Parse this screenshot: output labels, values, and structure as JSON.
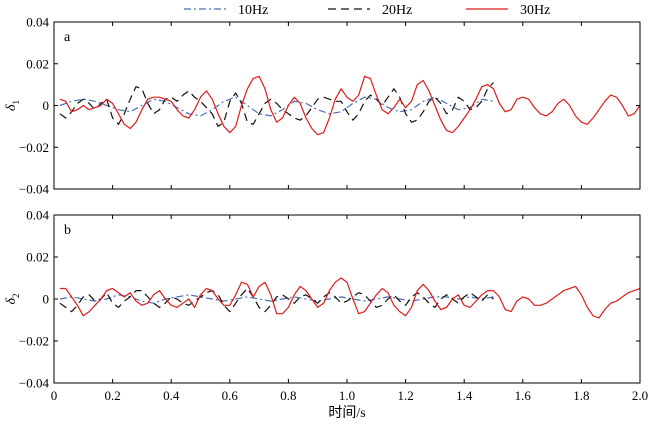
{
  "chart_data": [
    {
      "type": "line",
      "panel_label": "a",
      "ylabel": "δ",
      "ylabel_subscript": "1",
      "xlabel": "",
      "xlim": [
        0,
        2.0
      ],
      "ylim": [
        -0.04,
        0.04
      ],
      "x_ticks": [
        0,
        0.2,
        0.4,
        0.6,
        0.8,
        1.0,
        1.2,
        1.4,
        1.6,
        1.8,
        2.0
      ],
      "y_ticks": [
        -0.04,
        -0.02,
        0,
        0.02,
        0.04
      ],
      "y_tick_labels": [
        "−0.04",
        "−0.02",
        "0",
        "0.02",
        "0.04"
      ],
      "x_tick_labels_shown": false,
      "grid": false,
      "series": [
        {
          "name": "10Hz",
          "color": "#4a6fb5",
          "dash": "dashdot",
          "x": [
            0.02,
            0.06,
            0.1,
            0.14,
            0.18,
            0.22,
            0.26,
            0.3,
            0.34,
            0.38,
            0.42,
            0.46,
            0.5,
            0.54,
            0.58,
            0.62,
            0.66,
            0.7,
            0.74,
            0.78,
            0.82,
            0.86,
            0.9,
            0.94,
            0.98,
            1.02,
            1.06,
            1.1,
            1.14,
            1.18,
            1.22,
            1.26,
            1.3,
            1.34,
            1.38,
            1.42,
            1.46,
            1.5
          ],
          "y": [
            0.0,
            0.002,
            0.003,
            0.002,
            0.0,
            -0.002,
            -0.003,
            0.0,
            0.003,
            0.002,
            -0.001,
            -0.004,
            -0.005,
            -0.002,
            0.002,
            0.004,
            0.0,
            -0.004,
            -0.005,
            -0.002,
            0.002,
            0.001,
            -0.002,
            -0.004,
            -0.003,
            0.001,
            0.004,
            0.003,
            -0.001,
            -0.003,
            -0.002,
            0.002,
            0.004,
            0.001,
            -0.002,
            -0.001,
            0.003,
            0.002
          ]
        },
        {
          "name": "20Hz",
          "color": "#111111",
          "dash": "dash",
          "x": [
            0.02,
            0.04,
            0.06,
            0.08,
            0.1,
            0.12,
            0.14,
            0.16,
            0.18,
            0.2,
            0.22,
            0.24,
            0.26,
            0.28,
            0.3,
            0.32,
            0.34,
            0.36,
            0.38,
            0.4,
            0.42,
            0.44,
            0.46,
            0.48,
            0.5,
            0.52,
            0.54,
            0.56,
            0.58,
            0.6,
            0.62,
            0.64,
            0.66,
            0.68,
            0.7,
            0.72,
            0.74,
            0.76,
            0.78,
            0.8,
            0.82,
            0.84,
            0.86,
            0.88,
            0.9,
            0.92,
            0.94,
            0.96,
            0.98,
            1.0,
            1.02,
            1.04,
            1.06,
            1.08,
            1.1,
            1.12,
            1.14,
            1.16,
            1.18,
            1.2,
            1.22,
            1.24,
            1.26,
            1.28,
            1.3,
            1.32,
            1.34,
            1.36,
            1.38,
            1.4,
            1.42,
            1.44,
            1.46,
            1.48,
            1.5
          ],
          "y": [
            -0.004,
            -0.006,
            -0.003,
            0.001,
            0.003,
            0.001,
            -0.002,
            0.001,
            0.003,
            -0.006,
            -0.009,
            -0.004,
            0.003,
            0.009,
            0.008,
            0.001,
            -0.004,
            -0.002,
            0.003,
            0.004,
            0.002,
            0.005,
            0.007,
            0.004,
            0.002,
            -0.001,
            -0.004,
            -0.01,
            -0.008,
            0.002,
            0.006,
            0.001,
            -0.008,
            -0.009,
            -0.004,
            0.001,
            0.003,
            0.001,
            -0.002,
            -0.004,
            -0.006,
            -0.007,
            -0.005,
            -0.001,
            0.003,
            0.004,
            0.003,
            0.002,
            0.002,
            -0.003,
            -0.007,
            -0.004,
            0.002,
            0.005,
            0.003,
            0.0,
            0.004,
            0.008,
            0.004,
            -0.004,
            -0.008,
            -0.007,
            -0.003,
            0.002,
            0.004,
            0.001,
            -0.004,
            -0.002,
            0.004,
            0.002,
            -0.002,
            -0.001,
            0.002,
            0.008,
            0.011
          ]
        },
        {
          "name": "30Hz",
          "color": "#dd1c1c",
          "dash": "solid",
          "x": [
            0.02,
            0.04,
            0.06,
            0.08,
            0.1,
            0.12,
            0.14,
            0.16,
            0.18,
            0.2,
            0.22,
            0.24,
            0.26,
            0.28,
            0.3,
            0.32,
            0.34,
            0.36,
            0.38,
            0.4,
            0.42,
            0.44,
            0.46,
            0.48,
            0.5,
            0.52,
            0.54,
            0.56,
            0.58,
            0.6,
            0.62,
            0.64,
            0.66,
            0.68,
            0.7,
            0.72,
            0.74,
            0.76,
            0.78,
            0.8,
            0.82,
            0.84,
            0.86,
            0.88,
            0.9,
            0.92,
            0.94,
            0.96,
            0.98,
            1.0,
            1.02,
            1.04,
            1.06,
            1.08,
            1.1,
            1.12,
            1.14,
            1.16,
            1.18,
            1.2,
            1.22,
            1.24,
            1.26,
            1.28,
            1.3,
            1.32,
            1.34,
            1.36,
            1.38,
            1.4,
            1.42,
            1.44,
            1.46,
            1.48,
            1.5,
            1.52,
            1.54,
            1.56,
            1.58,
            1.6,
            1.62,
            1.64,
            1.66,
            1.68,
            1.7,
            1.72,
            1.74,
            1.76,
            1.78,
            1.8,
            1.82,
            1.84,
            1.86,
            1.88,
            1.9,
            1.92,
            1.94,
            1.96,
            1.98,
            2.0
          ],
          "y": [
            0.003,
            0.002,
            -0.003,
            -0.002,
            0.0,
            -0.002,
            -0.001,
            0.0,
            0.003,
            0.001,
            -0.004,
            -0.009,
            -0.011,
            -0.008,
            -0.002,
            0.003,
            0.004,
            0.004,
            0.003,
            0.002,
            -0.002,
            -0.005,
            -0.006,
            -0.002,
            0.004,
            0.007,
            0.003,
            -0.004,
            -0.01,
            -0.013,
            -0.01,
            0.0,
            0.008,
            0.013,
            0.014,
            0.008,
            -0.002,
            -0.008,
            -0.006,
            0.0,
            0.004,
            0.001,
            -0.006,
            -0.011,
            -0.014,
            -0.013,
            -0.006,
            0.003,
            0.008,
            0.004,
            0.002,
            0.005,
            0.014,
            0.013,
            0.005,
            -0.002,
            -0.004,
            -0.001,
            0.003,
            -0.001,
            0.002,
            0.01,
            0.012,
            0.007,
            0.0,
            -0.007,
            -0.012,
            -0.013,
            -0.01,
            -0.006,
            -0.002,
            0.003,
            0.009,
            0.01,
            0.008,
            0.001,
            -0.003,
            -0.002,
            0.003,
            0.004,
            0.003,
            -0.001,
            -0.004,
            -0.005,
            -0.003,
            0.001,
            0.003,
            0.0,
            -0.005,
            -0.008,
            -0.009,
            -0.006,
            -0.002,
            0.002,
            0.005,
            0.004,
            0.0,
            -0.005,
            -0.004,
            0.0
          ]
        }
      ]
    },
    {
      "type": "line",
      "panel_label": "b",
      "ylabel": "δ",
      "ylabel_subscript": "2",
      "xlabel": "时间/s",
      "xlim": [
        0,
        2.0
      ],
      "ylim": [
        -0.04,
        0.04
      ],
      "x_ticks": [
        0,
        0.2,
        0.4,
        0.6,
        0.8,
        1.0,
        1.2,
        1.4,
        1.6,
        1.8,
        2.0
      ],
      "x_tick_labels": [
        "0",
        "0.2",
        "0.4",
        "0.6",
        "0.8",
        "1.0",
        "1.2",
        "1.4",
        "1.6",
        "1.8",
        "2.0"
      ],
      "y_ticks": [
        -0.04,
        -0.02,
        0,
        0.02,
        0.04
      ],
      "y_tick_labels": [
        "−0.04",
        "−0.02",
        "0",
        "0.02",
        "0.04"
      ],
      "x_tick_labels_shown": true,
      "grid": false,
      "series": [
        {
          "name": "10Hz",
          "color": "#4a6fb5",
          "dash": "dashdot",
          "x": [
            0.02,
            0.06,
            0.1,
            0.14,
            0.18,
            0.22,
            0.26,
            0.3,
            0.34,
            0.38,
            0.42,
            0.46,
            0.5,
            0.54,
            0.58,
            0.62,
            0.66,
            0.7,
            0.74,
            0.78,
            0.82,
            0.86,
            0.9,
            0.94,
            0.98,
            1.02,
            1.06,
            1.1,
            1.14,
            1.18,
            1.22,
            1.26,
            1.3,
            1.34,
            1.38,
            1.42,
            1.46,
            1.5
          ],
          "y": [
            0.0,
            0.001,
            0.0,
            -0.001,
            0.0,
            0.002,
            0.001,
            -0.001,
            -0.002,
            0.0,
            0.001,
            0.002,
            0.001,
            0.0,
            -0.001,
            0.0,
            0.001,
            0.0,
            -0.001,
            0.0,
            0.001,
            0.0,
            -0.001,
            0.0,
            0.001,
            0.0,
            -0.001,
            0.0,
            0.001,
            0.0,
            -0.001,
            0.0,
            0.001,
            0.001,
            0.0,
            0.001,
            0.0,
            0.001
          ]
        },
        {
          "name": "20Hz",
          "color": "#111111",
          "dash": "dash",
          "x": [
            0.02,
            0.04,
            0.06,
            0.08,
            0.1,
            0.12,
            0.14,
            0.16,
            0.18,
            0.2,
            0.22,
            0.24,
            0.26,
            0.28,
            0.3,
            0.32,
            0.34,
            0.36,
            0.38,
            0.4,
            0.42,
            0.44,
            0.46,
            0.48,
            0.5,
            0.52,
            0.54,
            0.56,
            0.58,
            0.6,
            0.62,
            0.64,
            0.66,
            0.68,
            0.7,
            0.72,
            0.74,
            0.76,
            0.78,
            0.8,
            0.82,
            0.84,
            0.86,
            0.88,
            0.9,
            0.92,
            0.94,
            0.96,
            0.98,
            1.0,
            1.02,
            1.04,
            1.06,
            1.08,
            1.1,
            1.12,
            1.14,
            1.16,
            1.18,
            1.2,
            1.22,
            1.24,
            1.26,
            1.28,
            1.3,
            1.32,
            1.34,
            1.36,
            1.38,
            1.4,
            1.42,
            1.44,
            1.46,
            1.48,
            1.5
          ],
          "y": [
            -0.002,
            -0.004,
            -0.006,
            -0.003,
            0.001,
            0.002,
            -0.001,
            0.0,
            0.003,
            -0.002,
            -0.004,
            -0.001,
            0.001,
            0.004,
            0.004,
            0.001,
            -0.002,
            -0.004,
            -0.002,
            0.001,
            0.0,
            -0.002,
            -0.003,
            -0.001,
            0.001,
            0.003,
            0.004,
            0.002,
            -0.003,
            -0.006,
            -0.002,
            0.002,
            0.005,
            0.001,
            -0.004,
            -0.006,
            -0.003,
            0.001,
            0.002,
            0.0,
            -0.002,
            0.001,
            0.002,
            0.0,
            -0.002,
            0.001,
            0.003,
            0.001,
            -0.002,
            -0.001,
            0.001,
            0.003,
            0.002,
            -0.001,
            -0.004,
            -0.003,
            0.0,
            0.002,
            -0.001,
            -0.003,
            0.001,
            0.003,
            0.001,
            -0.002,
            -0.004,
            0.0,
            0.002,
            0.0,
            -0.002,
            0.001,
            0.003,
            0.001,
            -0.001,
            0.002,
            0.0
          ]
        },
        {
          "name": "30Hz",
          "color": "#dd1c1c",
          "dash": "solid",
          "x": [
            0.02,
            0.04,
            0.06,
            0.08,
            0.1,
            0.12,
            0.14,
            0.16,
            0.18,
            0.2,
            0.22,
            0.24,
            0.26,
            0.28,
            0.3,
            0.32,
            0.34,
            0.36,
            0.38,
            0.4,
            0.42,
            0.44,
            0.46,
            0.48,
            0.5,
            0.52,
            0.54,
            0.56,
            0.58,
            0.6,
            0.62,
            0.64,
            0.66,
            0.68,
            0.7,
            0.72,
            0.74,
            0.76,
            0.78,
            0.8,
            0.82,
            0.84,
            0.86,
            0.88,
            0.9,
            0.92,
            0.94,
            0.96,
            0.98,
            1.0,
            1.02,
            1.04,
            1.06,
            1.08,
            1.1,
            1.12,
            1.14,
            1.16,
            1.18,
            1.2,
            1.22,
            1.24,
            1.26,
            1.28,
            1.3,
            1.32,
            1.34,
            1.36,
            1.38,
            1.4,
            1.42,
            1.44,
            1.46,
            1.48,
            1.5,
            1.52,
            1.54,
            1.56,
            1.58,
            1.6,
            1.62,
            1.64,
            1.66,
            1.68,
            1.7,
            1.72,
            1.74,
            1.76,
            1.78,
            1.8,
            1.82,
            1.84,
            1.86,
            1.88,
            1.9,
            1.92,
            1.94,
            1.96,
            1.98,
            2.0
          ],
          "y": [
            0.005,
            0.005,
            0.001,
            -0.003,
            -0.008,
            -0.006,
            -0.003,
            0.0,
            0.004,
            0.005,
            0.003,
            0.001,
            0.003,
            -0.001,
            -0.003,
            -0.002,
            0.002,
            0.004,
            0.0,
            -0.003,
            -0.004,
            -0.002,
            0.0,
            -0.004,
            0.002,
            0.005,
            0.004,
            0.0,
            -0.003,
            -0.003,
            0.002,
            0.008,
            0.007,
            0.001,
            0.006,
            0.008,
            0.002,
            -0.007,
            -0.007,
            -0.004,
            0.002,
            0.006,
            0.004,
            0.0,
            -0.004,
            -0.002,
            0.004,
            0.008,
            0.01,
            0.008,
            0.0,
            -0.007,
            -0.006,
            -0.002,
            0.002,
            0.005,
            0.003,
            -0.003,
            -0.006,
            -0.008,
            -0.004,
            0.004,
            0.007,
            0.004,
            -0.001,
            -0.005,
            -0.004,
            0.0,
            0.002,
            -0.003,
            -0.004,
            -0.001,
            0.002,
            0.004,
            0.004,
            0.001,
            -0.005,
            -0.006,
            -0.001,
            0.001,
            0.0,
            -0.003,
            -0.003,
            -0.002,
            0.0,
            0.002,
            0.004,
            0.005,
            0.006,
            0.002,
            -0.004,
            -0.008,
            -0.009,
            -0.005,
            -0.002,
            -0.001,
            0.001,
            0.003,
            0.004,
            0.005
          ]
        }
      ]
    }
  ]
}
